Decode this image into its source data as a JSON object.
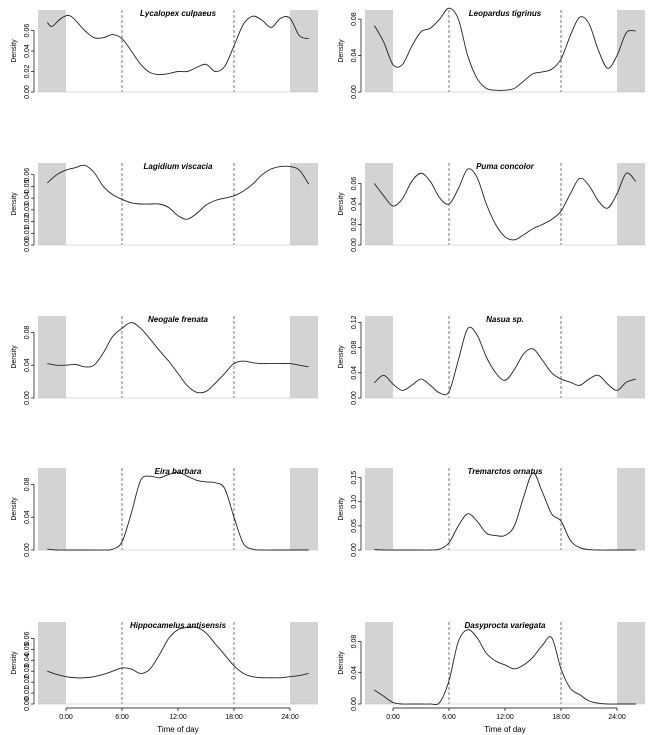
{
  "figure": {
    "xlabel": "Time of day",
    "ylabel": "Density",
    "x_tick_labels": [
      "0:00",
      "6:00",
      "12:00",
      "18:00",
      "24:00"
    ]
  },
  "chart_data": [
    {
      "type": "line",
      "title": "Lycalopex culpaeus",
      "xlabel": "",
      "ylabel": "Density",
      "xlim": [
        -3,
        27
      ],
      "ylim": [
        0,
        0.08
      ],
      "yticks": [
        0,
        0.02,
        0.04,
        0.06
      ],
      "shade": [
        [
          -3,
          0
        ],
        [
          24,
          27
        ]
      ],
      "dashed": [
        6,
        18
      ],
      "x": [
        -2,
        -1.5,
        -0.5,
        0.5,
        2,
        3,
        4,
        5,
        6,
        7,
        8,
        9,
        10,
        11,
        12,
        13,
        14,
        15,
        16,
        17,
        18,
        19,
        20,
        21,
        22,
        23,
        24,
        25,
        26
      ],
      "y": [
        0.068,
        0.064,
        0.072,
        0.074,
        0.06,
        0.053,
        0.053,
        0.056,
        0.052,
        0.04,
        0.027,
        0.019,
        0.017,
        0.018,
        0.02,
        0.02,
        0.024,
        0.027,
        0.02,
        0.025,
        0.045,
        0.066,
        0.074,
        0.07,
        0.063,
        0.072,
        0.072,
        0.055,
        0.052
      ]
    },
    {
      "type": "line",
      "title": "Leopardus tigrinus",
      "xlabel": "",
      "ylabel": "Density",
      "xlim": [
        -3,
        27
      ],
      "ylim": [
        0,
        0.09
      ],
      "yticks": [
        0,
        0.04,
        0.08
      ],
      "shade": [
        [
          -3,
          0
        ],
        [
          24,
          27
        ]
      ],
      "dashed": [
        6,
        18
      ],
      "x": [
        -2,
        -1,
        0,
        1,
        2,
        3,
        4,
        5,
        6,
        7,
        8,
        9,
        10,
        11,
        12,
        13,
        14,
        15,
        16,
        17,
        18,
        19,
        20,
        21,
        22,
        23,
        24,
        25,
        26
      ],
      "y": [
        0.073,
        0.055,
        0.03,
        0.03,
        0.05,
        0.066,
        0.07,
        0.08,
        0.092,
        0.08,
        0.04,
        0.015,
        0.004,
        0.002,
        0.002,
        0.004,
        0.012,
        0.02,
        0.022,
        0.025,
        0.036,
        0.062,
        0.082,
        0.075,
        0.046,
        0.026,
        0.04,
        0.065,
        0.067
      ]
    },
    {
      "type": "line",
      "title": "Lagidium viscacia",
      "xlabel": "",
      "ylabel": "Density",
      "xlim": [
        -3,
        27
      ],
      "ylim": [
        0,
        0.07
      ],
      "yticks": [
        0,
        0.01,
        0.02,
        0.03,
        0.04,
        0.05,
        0.06
      ],
      "shade": [
        [
          -3,
          0
        ],
        [
          24,
          27
        ]
      ],
      "dashed": [
        6,
        18
      ],
      "x": [
        -2,
        -1,
        0,
        1,
        2,
        3,
        4,
        5,
        6,
        7,
        8,
        9,
        10,
        11,
        12,
        13,
        14,
        15,
        16,
        17,
        18,
        19,
        20,
        21,
        22,
        23,
        24,
        25,
        26
      ],
      "y": [
        0.053,
        0.06,
        0.064,
        0.066,
        0.068,
        0.062,
        0.05,
        0.043,
        0.039,
        0.036,
        0.035,
        0.035,
        0.035,
        0.032,
        0.025,
        0.022,
        0.027,
        0.034,
        0.038,
        0.04,
        0.042,
        0.046,
        0.052,
        0.06,
        0.065,
        0.067,
        0.067,
        0.064,
        0.052
      ]
    },
    {
      "type": "line",
      "title": "Puma concolor",
      "xlabel": "",
      "ylabel": "Density",
      "xlim": [
        -3,
        27
      ],
      "ylim": [
        0,
        0.08
      ],
      "yticks": [
        0,
        0.02,
        0.04,
        0.06
      ],
      "shade": [
        [
          -3,
          0
        ],
        [
          24,
          27
        ]
      ],
      "dashed": [
        6,
        18
      ],
      "x": [
        -2,
        -1,
        0,
        1,
        2,
        3,
        4,
        5,
        6,
        7,
        8,
        9,
        10,
        11,
        12,
        13,
        14,
        15,
        16,
        17,
        18,
        19,
        20,
        21,
        22,
        23,
        24,
        25,
        26
      ],
      "y": [
        0.06,
        0.048,
        0.038,
        0.045,
        0.062,
        0.07,
        0.062,
        0.046,
        0.04,
        0.055,
        0.074,
        0.066,
        0.04,
        0.02,
        0.008,
        0.005,
        0.01,
        0.016,
        0.02,
        0.025,
        0.033,
        0.05,
        0.065,
        0.058,
        0.043,
        0.036,
        0.05,
        0.07,
        0.062
      ]
    },
    {
      "type": "line",
      "title": "Neogale frenata",
      "xlabel": "",
      "ylabel": "Density",
      "xlim": [
        -3,
        27
      ],
      "ylim": [
        0,
        0.1
      ],
      "yticks": [
        0,
        0.04,
        0.08
      ],
      "shade": [
        [
          -3,
          0
        ],
        [
          24,
          27
        ]
      ],
      "dashed": [
        6,
        18
      ],
      "x": [
        -2,
        -1,
        0,
        1,
        2,
        3,
        4,
        5,
        6,
        7,
        8,
        9,
        10,
        11,
        12,
        13,
        14,
        15,
        16,
        17,
        18,
        19,
        20,
        21,
        22,
        23,
        24,
        25,
        26
      ],
      "y": [
        0.042,
        0.04,
        0.04,
        0.041,
        0.038,
        0.04,
        0.055,
        0.075,
        0.085,
        0.092,
        0.085,
        0.072,
        0.058,
        0.045,
        0.03,
        0.015,
        0.007,
        0.008,
        0.018,
        0.03,
        0.042,
        0.045,
        0.043,
        0.042,
        0.042,
        0.042,
        0.042,
        0.04,
        0.038
      ]
    },
    {
      "type": "line",
      "title": "Nasua sp.",
      "xlabel": "",
      "ylabel": "Density",
      "xlim": [
        -3,
        27
      ],
      "ylim": [
        0,
        0.13
      ],
      "yticks": [
        0,
        0.04,
        0.08,
        0.12
      ],
      "shade": [
        [
          -3,
          0
        ],
        [
          24,
          27
        ]
      ],
      "dashed": [
        6,
        18
      ],
      "x": [
        -2,
        -1,
        0,
        1,
        2,
        3,
        4,
        5,
        6,
        7,
        8,
        9,
        10,
        11,
        12,
        13,
        14,
        15,
        16,
        17,
        18,
        19,
        20,
        21,
        22,
        23,
        24,
        25,
        26
      ],
      "y": [
        0.024,
        0.036,
        0.022,
        0.012,
        0.02,
        0.03,
        0.02,
        0.008,
        0.01,
        0.06,
        0.11,
        0.1,
        0.065,
        0.04,
        0.028,
        0.045,
        0.07,
        0.078,
        0.06,
        0.04,
        0.03,
        0.025,
        0.02,
        0.03,
        0.036,
        0.022,
        0.012,
        0.025,
        0.03
      ]
    },
    {
      "type": "line",
      "title": "Eira barbara",
      "xlabel": "",
      "ylabel": "Density",
      "xlim": [
        -3,
        27
      ],
      "ylim": [
        0,
        0.1
      ],
      "yticks": [
        0,
        0.04,
        0.08
      ],
      "shade": [
        [
          -3,
          0
        ],
        [
          24,
          27
        ]
      ],
      "dashed": [
        6,
        18
      ],
      "x": [
        -2,
        -1,
        0,
        1,
        2,
        3,
        4,
        5,
        6,
        7,
        8,
        9,
        10,
        11,
        12,
        13,
        14,
        15,
        16,
        17,
        18,
        19,
        20,
        21,
        22,
        23,
        24,
        25,
        26
      ],
      "y": [
        0.001,
        0,
        0,
        0,
        0,
        0,
        0,
        0.001,
        0.01,
        0.045,
        0.085,
        0.09,
        0.088,
        0.092,
        0.095,
        0.09,
        0.085,
        0.083,
        0.082,
        0.075,
        0.04,
        0.008,
        0.001,
        0,
        0,
        0,
        0,
        0,
        0
      ]
    },
    {
      "type": "line",
      "title": "Tremarctos ornatus",
      "xlabel": "",
      "ylabel": "Density",
      "xlim": [
        -3,
        27
      ],
      "ylim": [
        0,
        0.17
      ],
      "yticks": [
        0,
        0.05,
        0.1,
        0.15
      ],
      "shade": [
        [
          -3,
          0
        ],
        [
          24,
          27
        ]
      ],
      "dashed": [
        6,
        18
      ],
      "x": [
        -2,
        -1,
        0,
        1,
        2,
        3,
        4,
        5,
        6,
        7,
        8,
        9,
        10,
        11,
        12,
        13,
        14,
        15,
        16,
        17,
        18,
        19,
        20,
        21,
        22,
        23,
        24,
        25,
        26
      ],
      "y": [
        0.001,
        0,
        0,
        0,
        0,
        0,
        0,
        0.002,
        0.015,
        0.05,
        0.075,
        0.06,
        0.035,
        0.03,
        0.03,
        0.05,
        0.11,
        0.16,
        0.12,
        0.075,
        0.06,
        0.02,
        0.005,
        0.001,
        0,
        0,
        0,
        0,
        0
      ]
    },
    {
      "type": "line",
      "title": "Hippocamelus antisensis",
      "xlabel": "Time of day",
      "ylabel": "Density",
      "xlim": [
        -3,
        27
      ],
      "ylim": [
        0,
        0.075
      ],
      "yticks": [
        0,
        0.01,
        0.02,
        0.03,
        0.04,
        0.05,
        0.06
      ],
      "shade": [
        [
          -3,
          0
        ],
        [
          24,
          27
        ]
      ],
      "dashed": [
        6,
        18
      ],
      "x": [
        -2,
        -1,
        0,
        1,
        2,
        3,
        4,
        5,
        6,
        7,
        8,
        9,
        10,
        11,
        12,
        13,
        14,
        15,
        16,
        17,
        18,
        19,
        20,
        21,
        22,
        23,
        24,
        25,
        26
      ],
      "y": [
        0.03,
        0.027,
        0.025,
        0.024,
        0.024,
        0.025,
        0.027,
        0.03,
        0.033,
        0.032,
        0.028,
        0.032,
        0.045,
        0.06,
        0.068,
        0.07,
        0.07,
        0.065,
        0.055,
        0.045,
        0.035,
        0.028,
        0.025,
        0.024,
        0.024,
        0.024,
        0.025,
        0.026,
        0.028
      ]
    },
    {
      "type": "line",
      "title": "Dasyprocta variegata",
      "xlabel": "Time of day",
      "ylabel": "Density",
      "xlim": [
        -3,
        27
      ],
      "ylim": [
        0,
        0.105
      ],
      "yticks": [
        0,
        0.04,
        0.08
      ],
      "shade": [
        [
          -3,
          0
        ],
        [
          24,
          27
        ]
      ],
      "dashed": [
        6,
        18
      ],
      "x": [
        -2,
        -1,
        0,
        1,
        2,
        3,
        4,
        5,
        6,
        7,
        8,
        9,
        10,
        11,
        12,
        13,
        14,
        15,
        16,
        17,
        18,
        19,
        20,
        21,
        22,
        23,
        24,
        25,
        26
      ],
      "y": [
        0.018,
        0.01,
        0.002,
        0,
        0,
        0,
        0,
        0.002,
        0.03,
        0.08,
        0.095,
        0.085,
        0.065,
        0.055,
        0.05,
        0.045,
        0.05,
        0.06,
        0.075,
        0.085,
        0.045,
        0.02,
        0.012,
        0.004,
        0.001,
        0,
        0,
        0,
        0
      ]
    }
  ]
}
